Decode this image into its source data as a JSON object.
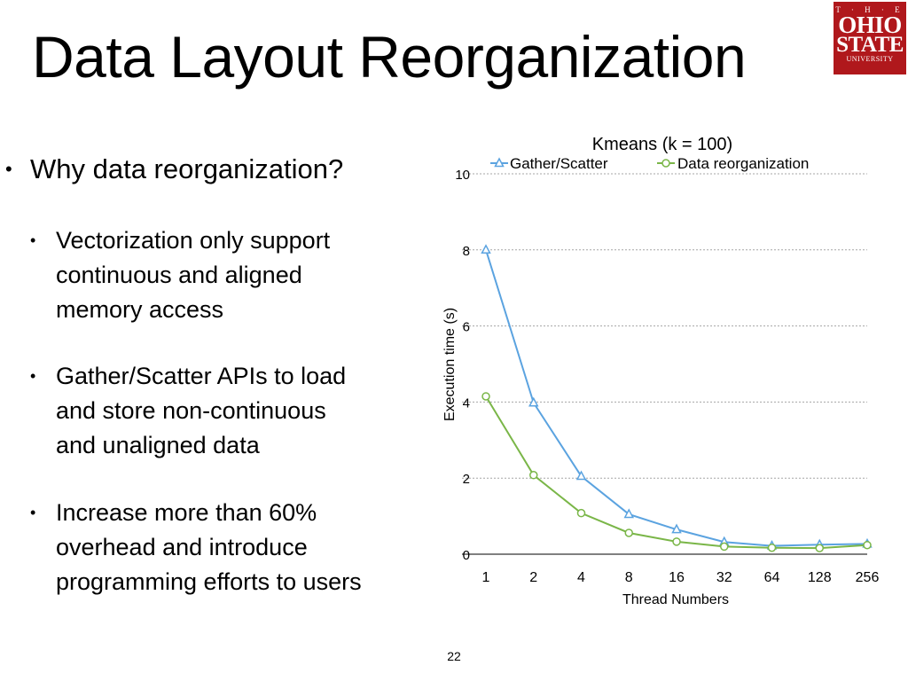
{
  "slide": {
    "title": "Data Layout Reorganization",
    "page_number": "22"
  },
  "logo": {
    "line1": "T · H · E",
    "line2": "OHIO",
    "line3": "STATE",
    "line4": "UNIVERSITY",
    "color": "#b0181c"
  },
  "bullets": {
    "main": "Why data reorganization?",
    "sub": [
      "Vectorization only support\ncontinuous and aligned\nmemory access",
      "Gather/Scatter APIs to load\nand store non-continuous\nand unaligned data",
      "Increase more than 60%\noverhead and introduce\nprogramming efforts to users"
    ]
  },
  "chart_data": {
    "type": "line",
    "title": "Kmeans (k = 100)",
    "xlabel": "Thread Numbers",
    "ylabel": "Execution time (s)",
    "categories": [
      "1",
      "2",
      "4",
      "8",
      "16",
      "32",
      "64",
      "128",
      "256"
    ],
    "ylim": [
      0,
      10
    ],
    "yticks": [
      "0",
      "2",
      "4",
      "6",
      "8",
      "10"
    ],
    "grid": "horizontal dotted",
    "legend_position": "top",
    "series": [
      {
        "name": "Gather/Scatter",
        "marker": "triangle",
        "color": "#5ba3e0",
        "values": [
          8.0,
          3.98,
          2.05,
          1.05,
          0.65,
          0.32,
          0.22,
          0.25,
          0.27
        ]
      },
      {
        "name": "Data reorganization",
        "marker": "circle",
        "color": "#7ab648",
        "values": [
          4.15,
          2.08,
          1.08,
          0.56,
          0.33,
          0.2,
          0.17,
          0.16,
          0.24
        ]
      }
    ]
  }
}
